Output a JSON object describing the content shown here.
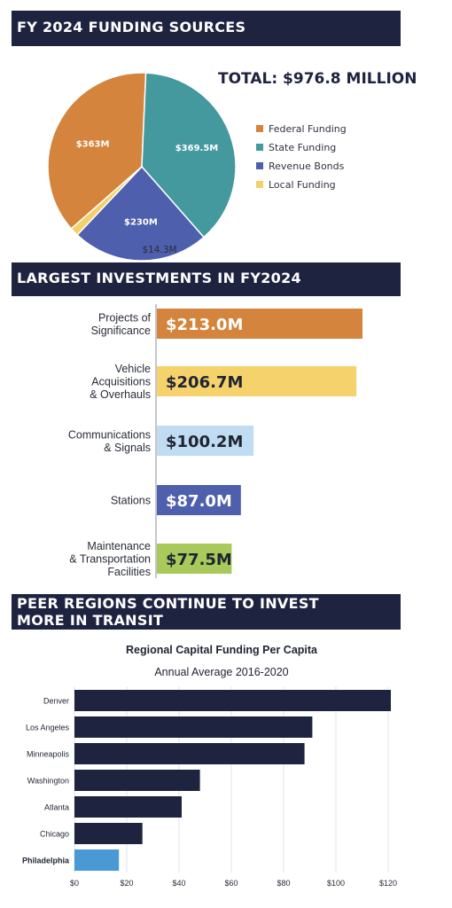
{
  "banners": {
    "funding": "FY 2024 FUNDING SOURCES",
    "investments": "LARGEST INVESTMENTS IN FY2024",
    "peers": "PEER REGIONS CONTINUE TO INVEST MORE IN TRANSIT"
  },
  "funding_total": "TOTAL: $976.8 MILLION",
  "colors": {
    "banner": "#1e2340",
    "federal": "#d4843c",
    "state": "#44999f",
    "revenue": "#4e5fad",
    "local": "#f2d06b",
    "peer_bar": "#1e2340",
    "philadelphia_bar": "#4a98d4"
  },
  "chart_data": [
    {
      "type": "pie",
      "labels": [
        "Federal Funding",
        "State Funding",
        "Revenue Bonds",
        "Local Funding"
      ],
      "values": [
        363,
        369.5,
        230,
        14.3
      ],
      "value_labels": [
        "$363M",
        "$369.5M",
        "$230M",
        "$14.3M"
      ],
      "colors": [
        "#d4843c",
        "#44999f",
        "#4e5fad",
        "#f2d06b"
      ],
      "legend_position": "right"
    },
    {
      "type": "bar",
      "orientation": "horizontal",
      "categories": [
        "Projects of Significance",
        "Vehicle Acquisitions & Overhauls",
        "Communications & Signals",
        "Stations",
        "Maintenance & Transportation Facilities"
      ],
      "category_lines": [
        [
          "Projects of",
          "Significance"
        ],
        [
          "Vehicle",
          "Acquisitions",
          "& Overhauls"
        ],
        [
          "Communications",
          "& Signals"
        ],
        [
          "Stations"
        ],
        [
          "Maintenance",
          "& Transportation",
          "Facilities"
        ]
      ],
      "values": [
        213.0,
        206.7,
        100.2,
        87.0,
        77.5
      ],
      "value_labels": [
        "$213.0M",
        "$206.7M",
        "$100.2M",
        "$87.0M",
        "$77.5M"
      ],
      "colors": [
        "#d4843c",
        "#f5d26b",
        "#bfdcf2",
        "#4e5fad",
        "#a9c95a"
      ],
      "label_colors": [
        "#ffffff",
        "#1f2433",
        "#1f2433",
        "#ffffff",
        "#1f2433"
      ]
    },
    {
      "type": "bar",
      "orientation": "horizontal",
      "title": "Regional Capital Funding Per Capita",
      "subtitle": "Annual Average 2016-2020",
      "categories": [
        "Denver",
        "Los Angeles",
        "Minneapolis",
        "Washington",
        "Atlanta",
        "Chicago",
        "Philadelphia"
      ],
      "values": [
        121,
        91,
        88,
        48,
        41,
        26,
        17
      ],
      "highlight": "Philadelphia",
      "xlim": [
        0,
        120
      ],
      "x_ticks": [
        "$0",
        "$20",
        "$40",
        "$60",
        "$80",
        "$100",
        "$120"
      ],
      "grid": true
    }
  ]
}
